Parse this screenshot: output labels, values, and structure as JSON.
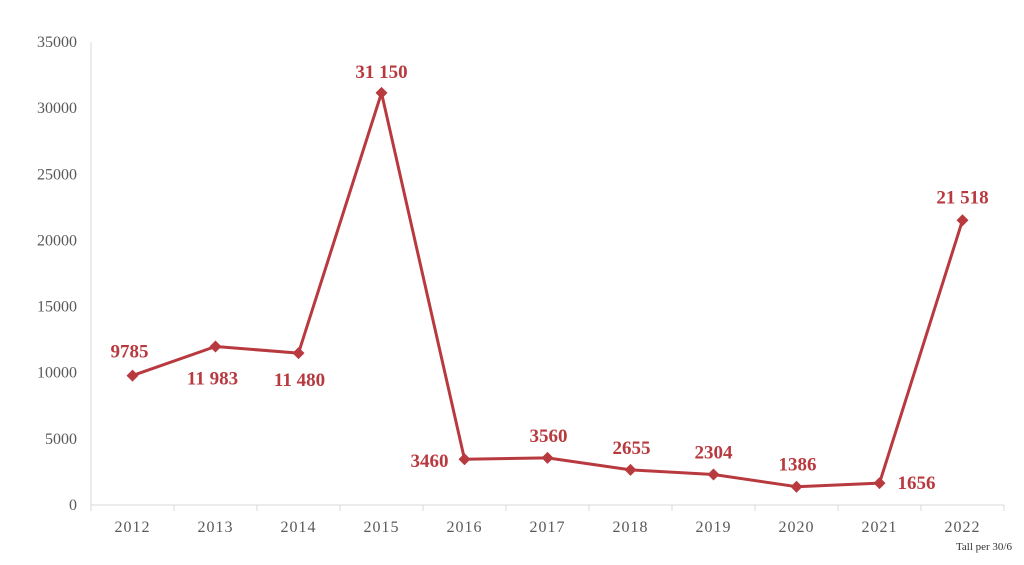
{
  "chart_data": {
    "type": "line",
    "categories": [
      "2012",
      "2013",
      "2014",
      "2015",
      "2016",
      "2017",
      "2018",
      "2019",
      "2020",
      "2021",
      "2022"
    ],
    "series": [
      {
        "values": [
          9785,
          11983,
          11480,
          31150,
          3460,
          3560,
          2655,
          2304,
          1386,
          1656,
          21518
        ],
        "data_labels": [
          "9785",
          "11 983",
          "11 480",
          "31 150",
          "3460",
          "3560",
          "2655",
          "2304",
          "1386",
          "1656",
          "21 518"
        ],
        "color": "#B83A3F",
        "marker": "diamond"
      }
    ],
    "yticks": [
      "0",
      "5000",
      "10000",
      "15000",
      "20000",
      "25000",
      "30000",
      "35000"
    ],
    "ylim": [
      0,
      35000
    ],
    "title": "",
    "xlabel": "",
    "ylabel": "",
    "grid": false,
    "legend": "none",
    "note": "Tall per 30/6"
  }
}
